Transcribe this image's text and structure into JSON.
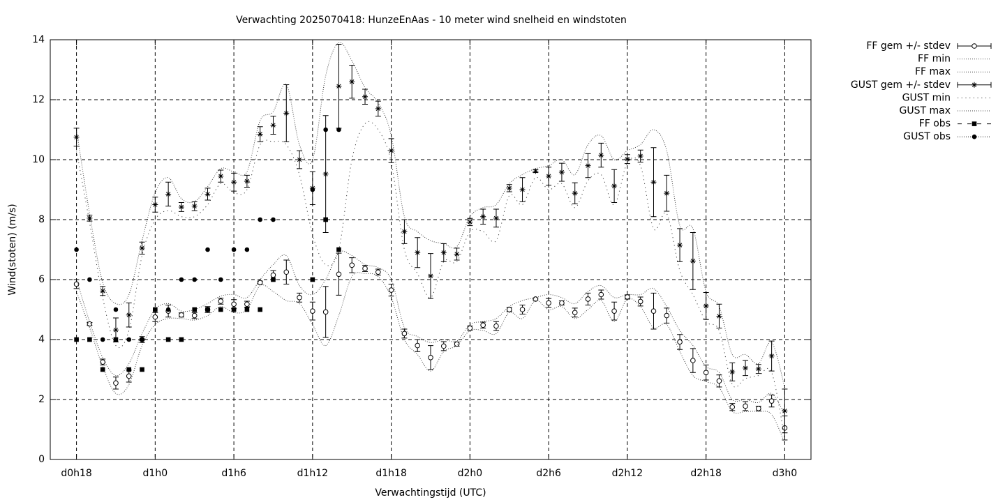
{
  "chart_data": {
    "type": "line",
    "title": "Verwachting 2025070418: HunzeEnAas - 10 meter wind snelheid en windstoten",
    "x_label": "Verwachtingstijd (UTC)",
    "y_label": "Wind(stoten) (m/s)",
    "xlim": [
      16,
      74
    ],
    "ylim": [
      0,
      14
    ],
    "xticks": [
      {
        "value": 18,
        "label": "d0h18"
      },
      {
        "value": 24,
        "label": "d1h0"
      },
      {
        "value": 30,
        "label": "d1h6"
      },
      {
        "value": 36,
        "label": "d1h12"
      },
      {
        "value": 42,
        "label": "d1h18"
      },
      {
        "value": 48,
        "label": "d2h0"
      },
      {
        "value": 54,
        "label": "d2h6"
      },
      {
        "value": 60,
        "label": "d2h12"
      },
      {
        "value": 66,
        "label": "d2h18"
      },
      {
        "value": 72,
        "label": "d3h0"
      }
    ],
    "yticks": [
      0,
      2,
      4,
      6,
      8,
      10,
      12,
      14
    ],
    "grid": true,
    "legend": "top-right-outside",
    "x": [
      18,
      19,
      20,
      21,
      22,
      23,
      24,
      25,
      26,
      27,
      28,
      29,
      30,
      31,
      32,
      33,
      34,
      35,
      36,
      37,
      38,
      39,
      40,
      41,
      42,
      43,
      44,
      45,
      46,
      47,
      48,
      49,
      50,
      51,
      52,
      53,
      54,
      55,
      56,
      57,
      58,
      59,
      60,
      61,
      62,
      63,
      64,
      65,
      66,
      67,
      68,
      69,
      70,
      71,
      72
    ],
    "series": [
      {
        "name": "FF gem +/- stdev",
        "color": "#000000",
        "style": "errorbars",
        "marker": "open-circle",
        "values": [
          5.85,
          4.52,
          3.25,
          2.55,
          2.78,
          4.0,
          4.75,
          4.95,
          4.82,
          4.8,
          5.0,
          5.28,
          5.18,
          5.18,
          5.9,
          6.15,
          6.25,
          5.4,
          4.95,
          4.92,
          6.18,
          6.48,
          6.37,
          6.25,
          5.65,
          4.2,
          3.8,
          3.4,
          3.78,
          3.85,
          4.38,
          4.48,
          4.45,
          5.0,
          5.0,
          5.35,
          5.22,
          5.22,
          4.9,
          5.35,
          5.5,
          4.95,
          5.42,
          5.27,
          4.95,
          4.8,
          3.92,
          3.3,
          2.9,
          2.62,
          1.75,
          1.78,
          1.7,
          1.95,
          1.05
        ],
        "errors": [
          0.15,
          0.05,
          0.1,
          0.2,
          0.2,
          0.1,
          0.15,
          0.2,
          0.07,
          0.1,
          0.1,
          0.1,
          0.15,
          0.1,
          0.05,
          0.15,
          0.4,
          0.15,
          0.3,
          0.85,
          0.7,
          0.25,
          0.1,
          0.1,
          0.2,
          0.15,
          0.2,
          0.4,
          0.15,
          0.07,
          0.07,
          0.1,
          0.15,
          0.07,
          0.15,
          0.03,
          0.15,
          0.07,
          0.15,
          0.2,
          0.15,
          0.3,
          0.07,
          0.15,
          0.6,
          0.25,
          0.25,
          0.4,
          0.25,
          0.2,
          0.12,
          0.15,
          0.08,
          0.2,
          0.4
        ]
      },
      {
        "name": "FF min",
        "color": "#000000",
        "style": "dotted-fine",
        "values": [
          5.6,
          4.4,
          3.1,
          2.2,
          2.5,
          3.8,
          4.5,
          4.7,
          4.7,
          4.65,
          4.8,
          5.1,
          4.9,
          5.0,
          5.8,
          5.6,
          5.3,
          5.2,
          4.5,
          3.8,
          4.8,
          6.1,
          6.2,
          6.1,
          5.4,
          4.0,
          3.5,
          2.95,
          3.6,
          3.8,
          4.3,
          4.3,
          4.2,
          4.9,
          4.7,
          5.3,
          5.0,
          5.1,
          4.7,
          5.0,
          5.3,
          4.6,
          5.35,
          5.1,
          4.4,
          4.5,
          3.6,
          2.8,
          2.6,
          2.4,
          1.6,
          1.6,
          1.6,
          1.5,
          0.55
        ]
      },
      {
        "name": "FF max",
        "color": "#000000",
        "style": "dotted-fine",
        "values": [
          6.0,
          4.6,
          3.4,
          2.8,
          3.2,
          4.2,
          5.0,
          5.2,
          4.95,
          5.0,
          5.2,
          5.45,
          5.5,
          5.4,
          6.0,
          6.5,
          6.8,
          5.8,
          5.5,
          6.0,
          6.9,
          6.8,
          6.5,
          6.4,
          6.0,
          4.4,
          4.1,
          3.9,
          4.0,
          3.95,
          4.5,
          4.6,
          4.7,
          5.1,
          5.3,
          5.4,
          5.5,
          5.4,
          5.2,
          5.6,
          5.8,
          5.4,
          5.5,
          5.5,
          5.7,
          5.1,
          4.3,
          3.8,
          3.1,
          2.9,
          2.0,
          2.0,
          1.9,
          2.2,
          1.5
        ]
      },
      {
        "name": "GUST gem +/- stdev",
        "color": "#000000",
        "style": "errorbars",
        "marker": "asterisk",
        "values": [
          10.75,
          8.05,
          5.62,
          4.32,
          4.82,
          7.05,
          8.5,
          8.85,
          8.42,
          8.45,
          8.85,
          9.45,
          9.25,
          9.28,
          10.85,
          11.15,
          11.55,
          10.0,
          9.05,
          9.52,
          12.45,
          12.6,
          12.1,
          11.7,
          10.3,
          7.6,
          6.9,
          6.12,
          6.9,
          6.85,
          7.92,
          8.1,
          8.05,
          9.05,
          9.0,
          9.62,
          9.45,
          9.58,
          8.88,
          9.8,
          10.15,
          9.12,
          10.02,
          10.12,
          9.25,
          8.88,
          7.15,
          6.62,
          5.12,
          4.78,
          2.92,
          3.05,
          3.02,
          3.45,
          1.62
        ],
        "errors": [
          0.3,
          0.1,
          0.15,
          0.4,
          0.4,
          0.2,
          0.25,
          0.4,
          0.15,
          0.15,
          0.2,
          0.2,
          0.3,
          0.2,
          0.25,
          0.3,
          0.95,
          0.3,
          0.55,
          1.95,
          1.4,
          0.55,
          0.25,
          0.25,
          0.4,
          0.4,
          0.5,
          0.75,
          0.3,
          0.2,
          0.12,
          0.25,
          0.3,
          0.12,
          0.4,
          0.05,
          0.3,
          0.3,
          0.35,
          0.4,
          0.4,
          0.55,
          0.15,
          0.2,
          1.15,
          0.6,
          0.55,
          0.95,
          0.45,
          0.4,
          0.3,
          0.25,
          0.15,
          0.5,
          0.73
        ]
      },
      {
        "name": "GUST min",
        "color": "#000000",
        "style": "dotted-coarse",
        "values": [
          10.3,
          7.9,
          5.4,
          3.8,
          4.3,
          6.8,
          8.0,
          8.3,
          8.1,
          8.1,
          8.5,
          9.2,
          8.9,
          9.0,
          10.5,
          10.6,
          10.5,
          9.5,
          7.5,
          6.5,
          7.0,
          10.0,
          11.2,
          11.0,
          9.9,
          7.0,
          6.2,
          5.4,
          6.6,
          6.6,
          7.6,
          7.6,
          7.3,
          8.8,
          8.5,
          9.4,
          9.0,
          9.2,
          8.4,
          9.3,
          9.5,
          8.5,
          9.9,
          9.8,
          7.7,
          8.2,
          6.3,
          5.5,
          4.6,
          4.3,
          2.5,
          2.7,
          2.8,
          2.9,
          0.7
        ]
      },
      {
        "name": "GUST max",
        "color": "#000000",
        "style": "dotted-fine",
        "values": [
          11.0,
          8.2,
          5.9,
          5.2,
          5.5,
          7.3,
          8.9,
          9.4,
          8.7,
          8.6,
          9.1,
          9.7,
          9.6,
          9.6,
          11.3,
          11.6,
          12.5,
          10.5,
          10.0,
          12.8,
          13.9,
          13.3,
          12.4,
          11.9,
          10.8,
          8.1,
          7.6,
          7.3,
          7.2,
          7.1,
          8.1,
          8.4,
          8.5,
          9.2,
          9.5,
          9.7,
          9.8,
          10.0,
          9.5,
          10.5,
          10.8,
          10.0,
          10.3,
          10.5,
          11.0,
          10.3,
          7.8,
          7.7,
          5.6,
          5.1,
          3.5,
          3.5,
          3.2,
          3.9,
          2.4
        ]
      },
      {
        "name": "FF obs",
        "color": "#000000",
        "style": "points",
        "marker": "square",
        "values": [
          4,
          4,
          3,
          4,
          3,
          3,
          5,
          4,
          4,
          5,
          5,
          5,
          5,
          5,
          5,
          6,
          null,
          null,
          6,
          8,
          7,
          null,
          null,
          null,
          null,
          null,
          null,
          null,
          null,
          null,
          null,
          null,
          null,
          null,
          null,
          null,
          null,
          null,
          null,
          null,
          null,
          null,
          null,
          null,
          null,
          null,
          null,
          null,
          null,
          null,
          null,
          null,
          null,
          null,
          null
        ]
      },
      {
        "name": "GUST obs",
        "color": "#000000",
        "style": "points",
        "marker": "circle",
        "values": [
          7,
          6,
          4,
          5,
          4,
          4,
          5,
          5,
          6,
          6,
          7,
          6,
          7,
          7,
          8,
          8,
          null,
          null,
          9,
          11,
          11,
          null,
          null,
          null,
          null,
          null,
          null,
          null,
          null,
          null,
          null,
          null,
          null,
          null,
          null,
          null,
          null,
          null,
          null,
          null,
          null,
          null,
          null,
          null,
          null,
          null,
          null,
          null,
          null,
          null,
          null,
          null,
          null,
          null,
          null
        ]
      }
    ]
  }
}
